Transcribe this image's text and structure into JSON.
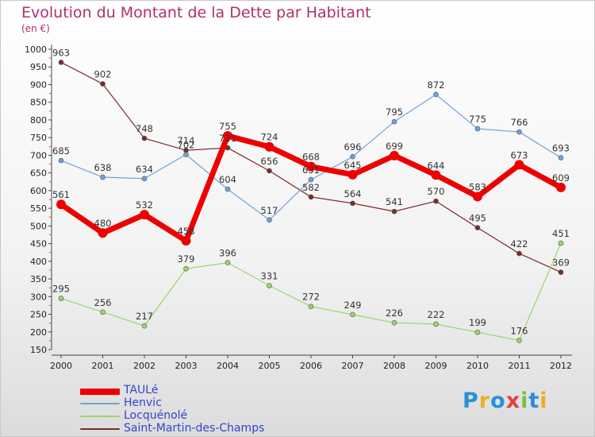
{
  "chart_data": {
    "type": "line",
    "title": "Evolution du Montant de la Dette par Habitant",
    "subtitle": "(en €)",
    "categories": [
      "2000",
      "2001",
      "2002",
      "2003",
      "2004",
      "2005",
      "2006",
      "2007",
      "2008",
      "2009",
      "2010",
      "2011",
      "2012"
    ],
    "ylim": [
      150,
      1000
    ],
    "yticks": [
      150,
      200,
      250,
      300,
      350,
      400,
      450,
      500,
      550,
      600,
      650,
      700,
      750,
      800,
      850,
      900,
      950,
      1000
    ],
    "grid": false,
    "legend_position": "bottom-left",
    "series": [
      {
        "name": "Saint-Martin-des-Champs",
        "color": "#7a2a2a",
        "values": [
          963,
          902,
          748,
          714,
          721,
          656,
          582,
          564,
          541,
          570,
          495,
          422,
          369
        ]
      },
      {
        "name": "Locquénolé",
        "color": "#9ad66a",
        "values": [
          295,
          256,
          217,
          379,
          396,
          331,
          272,
          249,
          226,
          222,
          199,
          176,
          451
        ]
      },
      {
        "name": "Henvic",
        "color": "#6fa3d6",
        "values": [
          685,
          638,
          634,
          702,
          604,
          517,
          631,
          696,
          795,
          872,
          775,
          766,
          693
        ]
      },
      {
        "name": "TAULé",
        "color": "#ee0000",
        "values": [
          561,
          480,
          532,
          458,
          755,
          724,
          668,
          645,
          699,
          644,
          583,
          673,
          609
        ]
      }
    ],
    "value_labels": {
      "Saint-Martin-des-Champs": [
        "963",
        "902",
        "748",
        "714",
        "721",
        "656",
        "582",
        "564",
        "541",
        "570",
        "495",
        "422",
        "369"
      ],
      "Locquénolé": [
        "295",
        "256",
        "217",
        "379",
        "396",
        "331",
        "272",
        "249",
        "226",
        "222",
        "199",
        "176",
        "451"
      ],
      "Henvic": [
        "685",
        "638",
        "634",
        "702",
        "604",
        "517",
        "631",
        "696",
        "795",
        "872",
        "775",
        "766",
        "693"
      ],
      "TAULé": [
        "561",
        "480",
        "532",
        "458",
        "755",
        "724",
        "668",
        "645",
        "699",
        "644",
        "583",
        "673",
        "609"
      ]
    }
  },
  "legend": {
    "items": [
      {
        "label": "TAULé",
        "color": "#ee0000"
      },
      {
        "label": "Henvic",
        "color": "#6fa3d6"
      },
      {
        "label": "Locquénolé",
        "color": "#9ad66a"
      },
      {
        "label": "Saint-Martin-des-Champs",
        "color": "#7a2a2a"
      }
    ]
  },
  "brand": {
    "text": "Proxiti",
    "letters": [
      {
        "ch": "P",
        "color": "#2a8fd8"
      },
      {
        "ch": "r",
        "color": "#e8b020"
      },
      {
        "ch": "o",
        "color": "#2a8fd8"
      },
      {
        "ch": "x",
        "color": "#e24040"
      },
      {
        "ch": "i",
        "color": "#7ac040"
      },
      {
        "ch": "t",
        "color": "#2a8fd8"
      },
      {
        "ch": "i",
        "color": "#e8b020"
      }
    ]
  }
}
